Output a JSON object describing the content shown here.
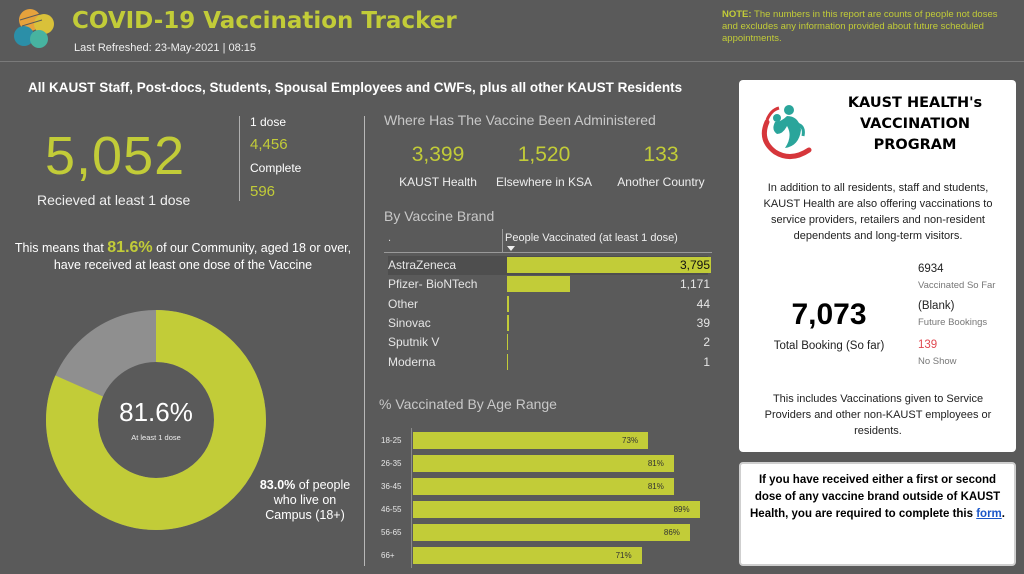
{
  "header": {
    "title": "COVID-19 Vaccination Tracker",
    "refreshed": "Last Refreshed: 23-May-2021 | 08:15",
    "note_bold": "NOTE:",
    "note_text": " The numbers in this report are counts of people not doses and excludes any information provided about future scheduled appointments."
  },
  "subtitle": "All KAUST Staff, Post-docs, Students, Spousal Employees and CWFs, plus all other KAUST Residents",
  "summary": {
    "total": "5,052",
    "total_label": "Recieved at least 1 dose",
    "one_dose_label": "1 dose",
    "one_dose_value": "4,456",
    "complete_label": "Complete",
    "complete_value": "596"
  },
  "community": {
    "pre": "This means that ",
    "percent": "81.6%",
    "post": " of our Community, aged 18 or over, have received at least one dose of the Vaccine"
  },
  "donut": {
    "value_pct": 81.6,
    "center_value": "81.6%",
    "center_label": "At least 1 dose",
    "fill_color": "#c2cc38",
    "rest_color": "#8f8f8f",
    "campus_pct": "83.0%",
    "campus_text1": " of people",
    "campus_text2": "who live on",
    "campus_text3": "Campus (18+)"
  },
  "where": {
    "title": "Where Has The Vaccine Been Administered",
    "items": [
      {
        "value": "3,399",
        "label": "KAUST Health"
      },
      {
        "value": "1,520",
        "label": "Elsewhere in KSA"
      },
      {
        "value": "133",
        "label": "Another Country"
      }
    ]
  },
  "brand": {
    "title": "By Vaccine Brand",
    "col1": ".",
    "col2": "People Vaccinated (at least 1 dose)",
    "max": 3795,
    "rows": [
      {
        "name": "AstraZeneca",
        "value": 3795,
        "label": "3,795"
      },
      {
        "name": "Pfizer- BioNTech",
        "value": 1171,
        "label": "1,171"
      },
      {
        "name": "Other",
        "value": 44,
        "label": "44"
      },
      {
        "name": "Sinovac",
        "value": 39,
        "label": "39"
      },
      {
        "name": "Sputnik V",
        "value": 2,
        "label": "2"
      },
      {
        "name": "Moderna",
        "value": 1,
        "label": "1"
      }
    ]
  },
  "age": {
    "title": "% Vaccinated By Age Range",
    "rows": [
      {
        "range": "18-25",
        "pct": 73,
        "label": "73%"
      },
      {
        "range": "26-35",
        "pct": 81,
        "label": "81%"
      },
      {
        "range": "36-45",
        "pct": 81,
        "label": "81%"
      },
      {
        "range": "46-55",
        "pct": 89,
        "label": "89%"
      },
      {
        "range": "56-65",
        "pct": 86,
        "label": "86%"
      },
      {
        "range": "66+",
        "pct": 71,
        "label": "71%"
      }
    ]
  },
  "program": {
    "title1": "KAUST HEALTH's",
    "title2": "VACCINATION",
    "title3": "PROGRAM",
    "desc": "In addition to all residents, staff and students, KAUST Health are also offering vaccinations to service providers, retailers and non-resident dependents and long-term visitors.",
    "total": "7,073",
    "total_label": "Total Booking (So far)",
    "vacc_value": "6934",
    "vacc_label": "Vaccinated So Far",
    "future_value": "(Blank)",
    "future_label": "Future Bookings",
    "noshow_value": "139",
    "noshow_label": "No Show",
    "footer": "This includes Vaccinations given to Service Providers and other non-KAUST employees or residents."
  },
  "notice": {
    "text": "If you have received either a first or second dose of any vaccine brand outside of KAUST Health, you are required to complete this ",
    "link": "form",
    "end": "."
  }
}
